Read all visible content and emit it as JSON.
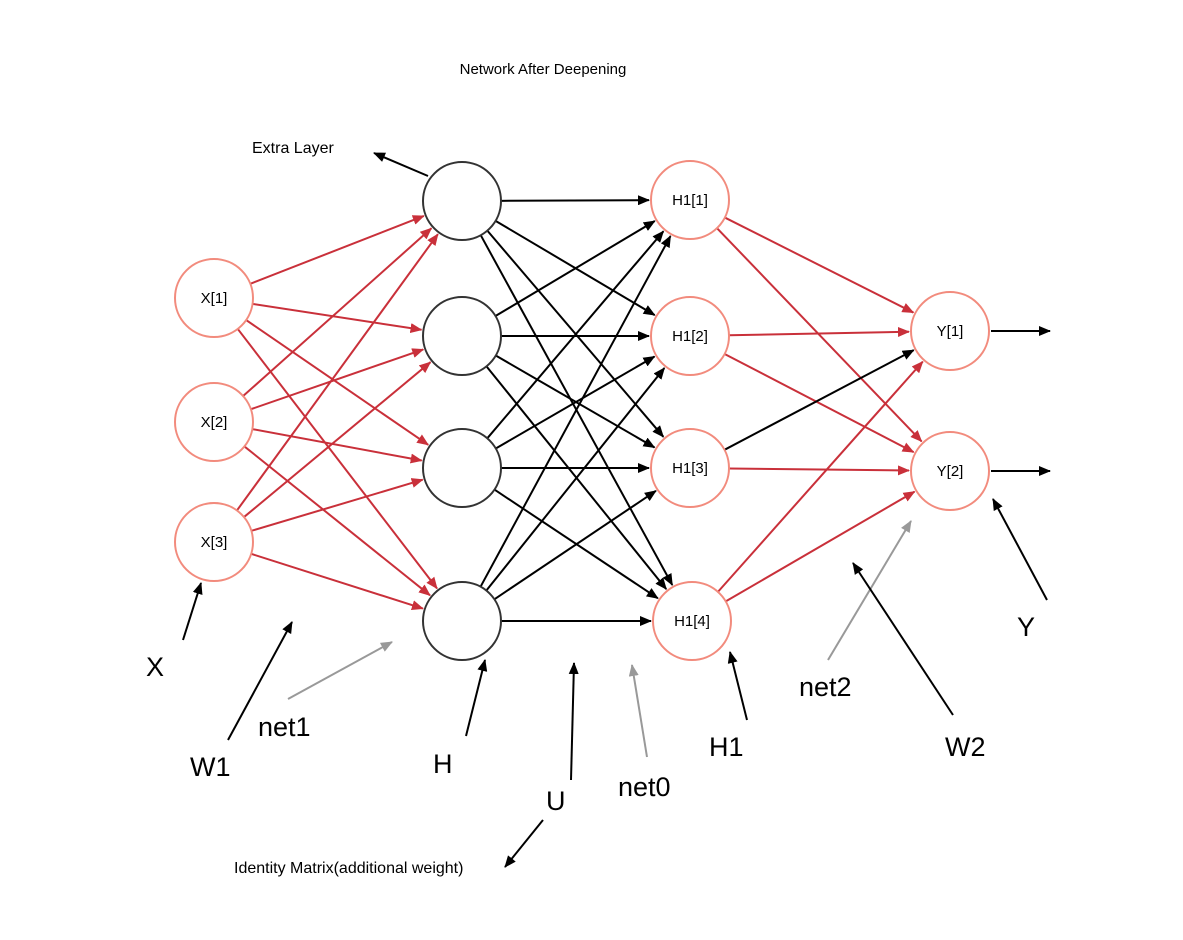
{
  "title": "Network After Deepening",
  "colors": {
    "input_node_stroke": "#f28b7d",
    "plain_node_stroke": "#333333",
    "red_edge": "#c9303a",
    "black_edge": "#000000",
    "gray_pointer": "#999999"
  },
  "nodes": {
    "inputs": [
      {
        "id": "x1",
        "label": "X[1]"
      },
      {
        "id": "x2",
        "label": "X[2]"
      },
      {
        "id": "x3",
        "label": "X[3]"
      }
    ],
    "hidden": [
      {
        "id": "h_a",
        "label": ""
      },
      {
        "id": "h_b",
        "label": ""
      },
      {
        "id": "h_c",
        "label": ""
      },
      {
        "id": "h_d",
        "label": ""
      }
    ],
    "h1": [
      {
        "id": "h11",
        "label": "H1[1]"
      },
      {
        "id": "h12",
        "label": "H1[2]"
      },
      {
        "id": "h13",
        "label": "H1[3]"
      },
      {
        "id": "h14",
        "label": "H1[4]"
      }
    ],
    "outputs": [
      {
        "id": "y1",
        "label": "Y[1]"
      },
      {
        "id": "y2",
        "label": "Y[2]"
      }
    ]
  },
  "annotations": {
    "extra_layer": "Extra Layer",
    "identity_matrix": "Identity Matrix(additional weight)",
    "x": "X",
    "w1": "W1",
    "net1": "net1",
    "h": "H",
    "u": "U",
    "net0": "net0",
    "h1": "H1",
    "net2": "net2",
    "w2": "W2",
    "y": "Y"
  }
}
